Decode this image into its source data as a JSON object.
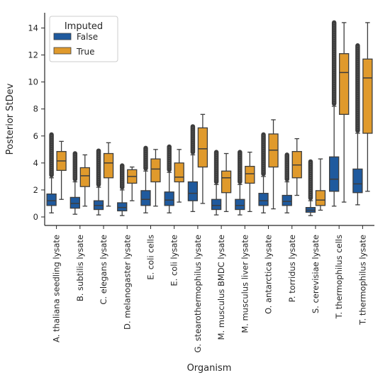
{
  "chart_data": {
    "type": "box",
    "title": "",
    "xlabel": "Organism",
    "ylabel": "Posterior StDev",
    "ylim": [
      -0.6,
      15.0
    ],
    "yticks": [
      0,
      2,
      4,
      6,
      8,
      10,
      12,
      14
    ],
    "grid": false,
    "legend": {
      "title": "Imputed",
      "placement": "top-left"
    },
    "colors": {
      "False": "#1f5a9e",
      "True": "#e09a2c",
      "edge": "#3d3d3d"
    },
    "categories": [
      "A. thaliana seedling lysate",
      "B. subtilis lysate",
      "C. elegans lysate",
      "D. melanogaster lysate",
      "E. coli cells",
      "E. coli lysate",
      "G. stearothermophilus lysate",
      "M. musculus BMDC lysate",
      "M. musculus liver lysate",
      "O. antarctica lysate",
      "P. torridus lysate",
      "S. cerevisiae lysate",
      "T. thermophilus cells",
      "T. thermophilus lysate"
    ],
    "series": [
      {
        "name": "False",
        "boxes": [
          {
            "whislo": 0.3,
            "q1": 0.85,
            "med": 1.2,
            "q3": 1.7,
            "whishi": 2.9,
            "fliers": [
              3.1,
              6.1
            ]
          },
          {
            "whislo": 0.2,
            "q1": 0.65,
            "med": 1.0,
            "q3": 1.45,
            "whishi": 2.6,
            "fliers": [
              2.8,
              4.7
            ]
          },
          {
            "whislo": 0.15,
            "q1": 0.55,
            "med": 0.85,
            "q3": 1.2,
            "whishi": 2.2,
            "fliers": [
              2.4,
              4.9
            ]
          },
          {
            "whislo": 0.1,
            "q1": 0.45,
            "med": 0.7,
            "q3": 1.05,
            "whishi": 2.0,
            "fliers": [
              2.2,
              3.8
            ]
          },
          {
            "whislo": 0.3,
            "q1": 0.85,
            "med": 1.3,
            "q3": 1.95,
            "whishi": 3.4,
            "fliers": [
              3.6,
              5.1
            ]
          },
          {
            "whislo": 0.3,
            "q1": 0.85,
            "med": 1.25,
            "q3": 1.85,
            "whishi": 3.3,
            "fliers": [
              3.5,
              5.2
            ]
          },
          {
            "whislo": 0.4,
            "q1": 1.2,
            "med": 1.75,
            "q3": 2.6,
            "whishi": 4.6,
            "fliers": [
              4.8,
              6.7
            ]
          },
          {
            "whislo": 0.15,
            "q1": 0.55,
            "med": 0.85,
            "q3": 1.3,
            "whishi": 2.4,
            "fliers": [
              2.6,
              4.8
            ]
          },
          {
            "whislo": 0.15,
            "q1": 0.55,
            "med": 0.85,
            "q3": 1.3,
            "whishi": 2.4,
            "fliers": [
              2.6,
              4.8
            ]
          },
          {
            "whislo": 0.3,
            "q1": 0.85,
            "med": 1.2,
            "q3": 1.75,
            "whishi": 3.0,
            "fliers": [
              3.2,
              6.1
            ]
          },
          {
            "whislo": 0.3,
            "q1": 0.85,
            "med": 1.15,
            "q3": 1.6,
            "whishi": 2.6,
            "fliers": [
              2.8,
              4.6
            ]
          },
          {
            "whislo": 0.1,
            "q1": 0.35,
            "med": 0.5,
            "q3": 0.7,
            "whishi": 1.2,
            "fliers": [
              1.4,
              4.1
            ]
          },
          {
            "whislo": 0.8,
            "q1": 1.9,
            "med": 2.8,
            "q3": 4.45,
            "whishi": 8.2,
            "fliers": [
              8.4,
              14.4
            ]
          },
          {
            "whislo": 0.9,
            "q1": 1.8,
            "med": 2.45,
            "q3": 3.55,
            "whishi": 6.2,
            "fliers": [
              6.4,
              12.7
            ]
          }
        ]
      },
      {
        "name": "True",
        "boxes": [
          {
            "whislo": 1.3,
            "q1": 3.45,
            "med": 4.15,
            "q3": 4.85,
            "whishi": 5.6,
            "fliers": []
          },
          {
            "whislo": 0.8,
            "q1": 2.25,
            "med": 3.05,
            "q3": 3.65,
            "whishi": 4.6,
            "fliers": []
          },
          {
            "whislo": 0.8,
            "q1": 2.9,
            "med": 4.0,
            "q3": 4.7,
            "whishi": 5.5,
            "fliers": []
          },
          {
            "whislo": 1.2,
            "q1": 2.5,
            "med": 3.0,
            "q3": 3.5,
            "whishi": 3.7,
            "fliers": []
          },
          {
            "whislo": 0.8,
            "q1": 2.6,
            "med": 3.55,
            "q3": 4.3,
            "whishi": 5.0,
            "fliers": []
          },
          {
            "whislo": 1.1,
            "q1": 2.6,
            "med": 2.95,
            "q3": 4.0,
            "whishi": 5.0,
            "fliers": []
          },
          {
            "whislo": 1.0,
            "q1": 3.7,
            "med": 5.05,
            "q3": 6.6,
            "whishi": 7.6,
            "fliers": []
          },
          {
            "whislo": 0.4,
            "q1": 1.8,
            "med": 2.9,
            "q3": 3.4,
            "whishi": 4.7,
            "fliers": []
          },
          {
            "whislo": 0.4,
            "q1": 2.5,
            "med": 3.2,
            "q3": 3.75,
            "whishi": 4.8,
            "fliers": []
          },
          {
            "whislo": 0.6,
            "q1": 3.7,
            "med": 4.95,
            "q3": 6.15,
            "whishi": 7.2,
            "fliers": []
          },
          {
            "whislo": 1.6,
            "q1": 2.9,
            "med": 3.85,
            "q3": 4.85,
            "whishi": 5.8,
            "fliers": []
          },
          {
            "whislo": 0.5,
            "q1": 0.85,
            "med": 1.25,
            "q3": 1.95,
            "whishi": 4.3,
            "fliers": []
          },
          {
            "whislo": 1.1,
            "q1": 7.6,
            "med": 10.7,
            "q3": 12.1,
            "whishi": 14.4,
            "fliers": []
          },
          {
            "whislo": 1.9,
            "q1": 6.2,
            "med": 10.3,
            "q3": 11.7,
            "whishi": 14.4,
            "fliers": []
          }
        ]
      }
    ]
  }
}
